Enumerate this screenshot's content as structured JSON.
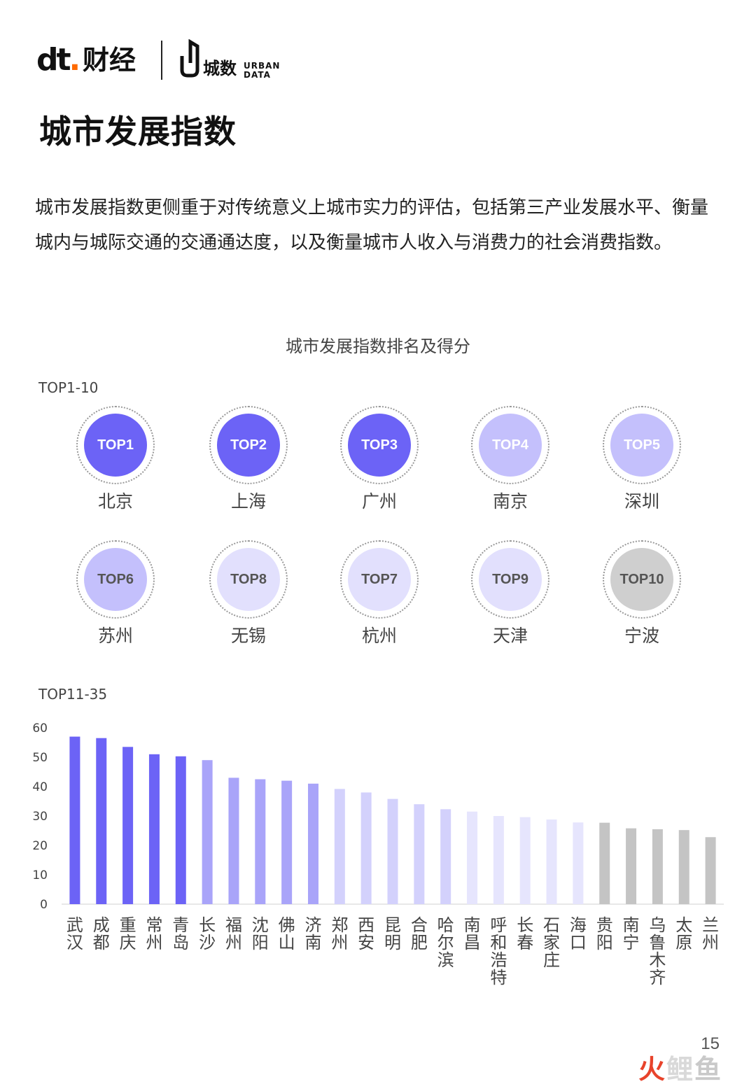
{
  "logo": {
    "brand_dt": "dt",
    "brand_dt_dot": ".",
    "brand_name": "财经",
    "partner_name": "城数",
    "partner_en_1": "URBAN",
    "partner_en_2": "DATA"
  },
  "page_title": "城市发展指数",
  "intro": "城市发展指数更侧重于对传统意义上城市实力的评估，包括第三产业发展水平、衡量城内与城际交通的交通通达度，以及衡量城市人收入与消费力的社会消费指数。",
  "chart_title": "城市发展指数排名及得分",
  "top10_label": "TOP1-10",
  "top10": [
    {
      "badge": "TOP1",
      "city": "北京",
      "color": "#6c63f6",
      "text_color": "#ffffff"
    },
    {
      "badge": "TOP2",
      "city": "上海",
      "color": "#6c63f6",
      "text_color": "#ffffff"
    },
    {
      "badge": "TOP3",
      "city": "广州",
      "color": "#6c63f6",
      "text_color": "#ffffff"
    },
    {
      "badge": "TOP4",
      "city": "南京",
      "color": "#c4c0fc",
      "text_color": "#ffffff"
    },
    {
      "badge": "TOP5",
      "city": "深圳",
      "color": "#c4c0fc",
      "text_color": "#ffffff"
    },
    {
      "badge": "TOP6",
      "city": "苏州",
      "color": "#c4c0fc",
      "text_color": "#555555"
    },
    {
      "badge": "TOP8",
      "city": "无锡",
      "color": "#e2e0fd",
      "text_color": "#555555"
    },
    {
      "badge": "TOP7",
      "city": "杭州",
      "color": "#e2e0fd",
      "text_color": "#555555"
    },
    {
      "badge": "TOP9",
      "city": "天津",
      "color": "#e2e0fd",
      "text_color": "#555555"
    },
    {
      "badge": "TOP10",
      "city": "宁波",
      "color": "#cfcfcf",
      "text_color": "#555555"
    }
  ],
  "top11_35_label": "TOP11-35",
  "chart_data": {
    "type": "bar",
    "categories": [
      "武汉",
      "成都",
      "重庆",
      "常州",
      "青岛",
      "长沙",
      "福州",
      "沈阳",
      "佛山",
      "济南",
      "郑州",
      "西安",
      "昆明",
      "合肥",
      "哈尔滨",
      "南昌",
      "呼和浩特",
      "长春",
      "石家庄",
      "海口",
      "贵阳",
      "南宁",
      "乌鲁木齐",
      "太原",
      "兰州"
    ],
    "values": [
      57,
      56.5,
      53.5,
      51,
      50.3,
      49,
      43,
      42.5,
      42,
      41,
      39.2,
      38,
      35.8,
      34,
      32.3,
      31.5,
      30,
      29.6,
      28.8,
      27.8,
      27.7,
      25.8,
      25.5,
      25.2,
      22.8
    ],
    "colors": [
      "#6c63f6",
      "#6c63f6",
      "#6c63f6",
      "#6c63f6",
      "#6c63f6",
      "#a9a4f9",
      "#a9a4f9",
      "#a9a4f9",
      "#a9a4f9",
      "#a9a4f9",
      "#d3d1fc",
      "#d3d1fc",
      "#d3d1fc",
      "#d3d1fc",
      "#d3d1fc",
      "#e6e5fd",
      "#e6e5fd",
      "#e6e5fd",
      "#e6e5fd",
      "#e6e5fd",
      "#c4c4c4",
      "#c4c4c4",
      "#c4c4c4",
      "#c4c4c4",
      "#c4c4c4"
    ],
    "ylim": [
      0,
      60
    ],
    "yticks": [
      "0",
      "10",
      "20",
      "30",
      "40",
      "50",
      "60"
    ],
    "grid": false
  },
  "page_number": "15",
  "watermark": {
    "part1": "火",
    "part2": "鲤",
    "part3": "鱼"
  }
}
